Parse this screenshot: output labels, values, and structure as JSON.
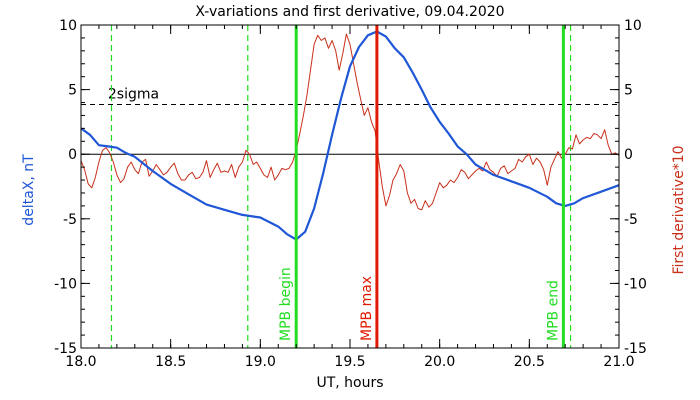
{
  "chart_data": {
    "type": "line",
    "title": "X-variations and first derivative, 09.04.2020",
    "xlabel": "UT, hours",
    "ylabel_left": "deltaX, nT",
    "ylabel_right": "First derivative*10",
    "xlim": [
      18.0,
      21.0
    ],
    "ylim": [
      -15,
      10
    ],
    "x_ticks": [
      "18.0",
      "18.5",
      "19.0",
      "19.5",
      "20.0",
      "20.5",
      "21.0"
    ],
    "x_tick_values": [
      18.0,
      18.5,
      19.0,
      19.5,
      20.0,
      20.5,
      21.0
    ],
    "y_ticks_left": [
      "10",
      "5",
      "0",
      "-5",
      "-10",
      "-15"
    ],
    "y_ticks_right": [
      "10",
      "5",
      "0",
      "-5",
      "-10",
      "-15"
    ],
    "y_tick_values": [
      10,
      5,
      0,
      -5,
      -10,
      -15
    ],
    "threshold": {
      "label": "2sigma",
      "value": 3.85
    },
    "zero_line": 0,
    "colors": {
      "deltaX": "#1f57d6",
      "derivative": "#c8301a",
      "green": "#22dd22",
      "red": "#e01a00"
    },
    "vlines_dashed": [
      18.17,
      18.93,
      20.73
    ],
    "markers": [
      {
        "label": "MPB begin",
        "x": 19.2,
        "color": "#22dd22"
      },
      {
        "label": "MPB max",
        "x": 19.65,
        "color": "#e01a00"
      },
      {
        "label": "MPB end",
        "x": 20.69,
        "color": "#22dd22"
      }
    ],
    "series": [
      {
        "key": "deltaX",
        "x": [
          18.0,
          18.05,
          18.1,
          18.15,
          18.2,
          18.25,
          18.3,
          18.4,
          18.5,
          18.6,
          18.7,
          18.8,
          18.9,
          19.0,
          19.1,
          19.15,
          19.2,
          19.25,
          19.3,
          19.35,
          19.4,
          19.45,
          19.5,
          19.55,
          19.6,
          19.65,
          19.7,
          19.75,
          19.8,
          19.85,
          19.9,
          19.95,
          20.0,
          20.05,
          20.1,
          20.15,
          20.2,
          20.3,
          20.4,
          20.5,
          20.6,
          20.65,
          20.7,
          20.75,
          20.8,
          20.9,
          21.0
        ],
        "values": [
          2.0,
          1.5,
          0.7,
          0.6,
          0.5,
          0.1,
          -0.2,
          -1.3,
          -2.3,
          -3.1,
          -3.9,
          -4.3,
          -4.7,
          -4.9,
          -5.6,
          -6.2,
          -6.6,
          -6.0,
          -4.2,
          -1.5,
          1.5,
          4.3,
          6.8,
          8.3,
          9.2,
          9.5,
          9.1,
          8.2,
          7.5,
          6.3,
          5.0,
          3.6,
          2.5,
          1.6,
          0.6,
          0.0,
          -0.8,
          -1.6,
          -2.1,
          -2.6,
          -3.3,
          -3.8,
          -4.0,
          -3.8,
          -3.4,
          -2.9,
          -2.4
        ]
      },
      {
        "key": "derivative",
        "x": [
          18.0,
          18.02,
          18.04,
          18.06,
          18.08,
          18.1,
          18.12,
          18.14,
          18.16,
          18.18,
          18.2,
          18.22,
          18.24,
          18.26,
          18.28,
          18.3,
          18.32,
          18.34,
          18.36,
          18.38,
          18.4,
          18.42,
          18.44,
          18.46,
          18.48,
          18.5,
          18.52,
          18.54,
          18.56,
          18.58,
          18.6,
          18.62,
          18.64,
          18.66,
          18.68,
          18.7,
          18.72,
          18.74,
          18.76,
          18.78,
          18.8,
          18.82,
          18.84,
          18.86,
          18.88,
          18.9,
          18.92,
          18.94,
          18.96,
          18.98,
          19.0,
          19.02,
          19.04,
          19.06,
          19.08,
          19.1,
          19.12,
          19.14,
          19.16,
          19.18,
          19.2,
          19.22,
          19.24,
          19.26,
          19.28,
          19.3,
          19.32,
          19.34,
          19.36,
          19.38,
          19.4,
          19.42,
          19.44,
          19.46,
          19.48,
          19.5,
          19.52,
          19.54,
          19.56,
          19.58,
          19.6,
          19.62,
          19.64,
          19.66,
          19.68,
          19.7,
          19.72,
          19.74,
          19.76,
          19.78,
          19.8,
          19.82,
          19.84,
          19.86,
          19.88,
          19.9,
          19.92,
          19.94,
          19.96,
          19.98,
          20.0,
          20.02,
          20.04,
          20.06,
          20.08,
          20.1,
          20.12,
          20.14,
          20.16,
          20.18,
          20.2,
          20.22,
          20.24,
          20.26,
          20.28,
          20.3,
          20.32,
          20.34,
          20.36,
          20.38,
          20.4,
          20.42,
          20.44,
          20.46,
          20.48,
          20.5,
          20.52,
          20.54,
          20.56,
          20.58,
          20.6,
          20.62,
          20.64,
          20.66,
          20.68,
          20.7,
          20.72,
          20.74,
          20.76,
          20.78,
          20.8,
          20.82,
          20.84,
          20.86,
          20.88,
          20.9,
          20.92,
          20.94,
          20.96,
          20.98,
          21.0
        ],
        "values": [
          -0.5,
          -1.2,
          -2.3,
          -2.6,
          -1.8,
          -0.6,
          0.3,
          0.5,
          0.1,
          -0.6,
          -1.6,
          -2.2,
          -1.9,
          -1.0,
          -0.6,
          -1.2,
          -1.5,
          -0.6,
          -0.4,
          -1.7,
          -1.3,
          -0.8,
          -1.2,
          -1.6,
          -1.4,
          -1.0,
          -0.7,
          -1.5,
          -2.0,
          -2.0,
          -1.6,
          -1.4,
          -1.9,
          -1.8,
          -1.4,
          -0.5,
          -1.8,
          -1.2,
          -0.7,
          -1.4,
          -1.3,
          -1.4,
          -0.8,
          -1.8,
          -1.0,
          -0.6,
          0.3,
          0.0,
          -0.8,
          -0.6,
          -1.1,
          -1.6,
          -1.8,
          -1.0,
          -2.0,
          -1.6,
          -1.1,
          -1.2,
          -1.1,
          -0.6,
          0.3,
          1.6,
          3.0,
          4.6,
          6.5,
          8.5,
          9.2,
          8.8,
          9.0,
          8.2,
          8.8,
          8.0,
          6.5,
          7.8,
          9.3,
          8.5,
          7.0,
          5.5,
          4.2,
          3.0,
          3.6,
          2.5,
          1.8,
          -0.5,
          -2.5,
          -4.0,
          -3.2,
          -2.0,
          -1.5,
          -0.8,
          -1.3,
          -3.0,
          -3.8,
          -3.5,
          -4.2,
          -4.3,
          -3.6,
          -4.1,
          -3.8,
          -3.0,
          -2.2,
          -2.6,
          -2.4,
          -2.0,
          -2.2,
          -1.8,
          -1.2,
          -1.4,
          -1.9,
          -1.6,
          -1.3,
          -1.1,
          -1.3,
          -0.6,
          -1.2,
          -1.4,
          -1.7,
          -1.1,
          -0.9,
          -1.5,
          -1.3,
          -1.1,
          -0.4,
          -0.6,
          -0.2,
          0.0,
          -0.8,
          -0.3,
          -0.6,
          -1.2,
          -2.4,
          -1.0,
          -0.4,
          0.2,
          -0.3,
          0.0,
          0.5,
          0.4,
          1.5,
          0.8,
          1.1,
          1.3,
          1.2,
          1.6,
          1.5,
          1.2,
          1.9,
          0.7,
          0.0,
          0.1,
          -0.1
        ]
      }
    ]
  }
}
